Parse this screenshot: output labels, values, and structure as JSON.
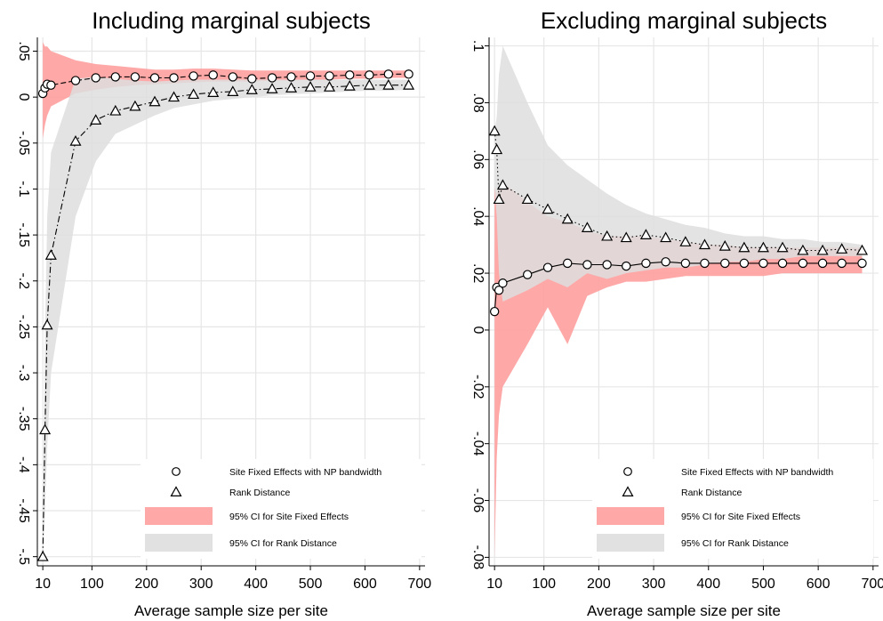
{
  "chart_data": [
    {
      "type": "line",
      "title": "Including marginal subjects",
      "xlabel": "Average sample size per site",
      "ylabel": "",
      "xlim": [
        0,
        710
      ],
      "ylim": [
        -0.51,
        0.065
      ],
      "xticks": [
        10,
        100,
        200,
        300,
        400,
        500,
        600,
        700
      ],
      "xtick_labels": [
        "10",
        "100",
        "200",
        "300",
        "400",
        "500",
        "600",
        "700"
      ],
      "yticks": [
        0.05,
        0,
        -0.05,
        -0.1,
        -0.15,
        -0.2,
        -0.25,
        -0.3,
        -0.35,
        -0.4,
        -0.45,
        -0.5
      ],
      "ytick_labels": [
        ".05",
        "0",
        "-.05",
        "-.1",
        "-.15",
        "-.2",
        "-.25",
        "-.3",
        "-.35",
        "-.4",
        "-.45",
        "-.5"
      ],
      "grid": true,
      "legend_position": "bottom-right",
      "legend": [
        "Site Fixed Effects with NP bandwidth",
        "Rank Distance",
        "95% CI for Site Fixed Effects",
        "95% CI for Rank Distance"
      ],
      "series": [
        {
          "marker": "circle",
          "line": "dash",
          "x": [
            10,
            14,
            18,
            25,
            70,
            107,
            143,
            179,
            215,
            250,
            286,
            322,
            358,
            393,
            430,
            465,
            500,
            535,
            572,
            608,
            643,
            680
          ],
          "y": [
            0.004,
            0.01,
            0.014,
            0.013,
            0.018,
            0.021,
            0.022,
            0.022,
            0.021,
            0.021,
            0.023,
            0.024,
            0.022,
            0.02,
            0.021,
            0.022,
            0.023,
            0.023,
            0.024,
            0.024,
            0.025,
            0.025
          ]
        },
        {
          "marker": "triangle",
          "line": "dashdot",
          "x": [
            10,
            14,
            18,
            25,
            70,
            107,
            143,
            179,
            215,
            250,
            286,
            322,
            358,
            393,
            430,
            465,
            500,
            535,
            572,
            608,
            643,
            680
          ],
          "y": [
            -0.5,
            -0.362,
            -0.248,
            -0.172,
            -0.048,
            -0.025,
            -0.015,
            -0.01,
            -0.005,
            0.0,
            0.003,
            0.005,
            0.006,
            0.008,
            0.009,
            0.01,
            0.011,
            0.011,
            0.012,
            0.013,
            0.013,
            0.013
          ]
        }
      ],
      "bands": [
        {
          "color": "#ff9e9e",
          "x": [
            10,
            14,
            18,
            25,
            70,
            107,
            143,
            179,
            215,
            250,
            286,
            322,
            358,
            393,
            430,
            465,
            500,
            535,
            572,
            608,
            643,
            680
          ],
          "lower": [
            -0.045,
            -0.03,
            -0.02,
            -0.01,
            0.004,
            0.008,
            0.011,
            0.013,
            0.014,
            0.015,
            0.016,
            0.017,
            0.017,
            0.017,
            0.018,
            0.018,
            0.019,
            0.019,
            0.02,
            0.02,
            0.021,
            0.021
          ],
          "upper": [
            0.06,
            0.055,
            0.055,
            0.05,
            0.04,
            0.036,
            0.034,
            0.032,
            0.03,
            0.03,
            0.031,
            0.031,
            0.03,
            0.029,
            0.029,
            0.029,
            0.029,
            0.029,
            0.029,
            0.029,
            0.029,
            0.029
          ]
        },
        {
          "color": "#dedede",
          "x": [
            10,
            14,
            18,
            25,
            70,
            107,
            143,
            179,
            215,
            250,
            286,
            322,
            358,
            393,
            430,
            465,
            500,
            535,
            572,
            608,
            643,
            680
          ],
          "lower": [
            -0.5,
            -0.45,
            -0.38,
            -0.3,
            -0.13,
            -0.07,
            -0.04,
            -0.03,
            -0.02,
            -0.012,
            -0.008,
            -0.004,
            -0.002,
            0.0,
            0.002,
            0.003,
            0.004,
            0.005,
            0.006,
            0.007,
            0.007,
            0.008
          ],
          "upper": [
            -0.5,
            -0.26,
            -0.13,
            -0.06,
            0.02,
            0.022,
            0.02,
            0.018,
            0.017,
            0.018,
            0.019,
            0.019,
            0.019,
            0.019,
            0.019,
            0.019,
            0.019,
            0.019,
            0.019,
            0.019,
            0.019,
            0.019
          ]
        }
      ]
    },
    {
      "type": "line",
      "title": "Excluding marginal subjects",
      "xlabel": "Average sample size per site",
      "ylabel": "",
      "xlim": [
        0,
        710
      ],
      "ylim": [
        -0.083,
        0.103
      ],
      "xticks": [
        10,
        100,
        200,
        300,
        400,
        500,
        600,
        700
      ],
      "xtick_labels": [
        "10",
        "100",
        "200",
        "300",
        "400",
        "500",
        "600",
        "700"
      ],
      "yticks": [
        0.1,
        0.08,
        0.06,
        0.04,
        0.02,
        0,
        -0.02,
        -0.04,
        -0.06,
        -0.08
      ],
      "ytick_labels": [
        ".1",
        ".08",
        ".06",
        ".04",
        ".02",
        "0",
        "-.02",
        "-.04",
        "-.06",
        "-.08"
      ],
      "grid": true,
      "legend_position": "bottom-right",
      "legend": [
        "Site Fixed Effects with NP bandwidth",
        "Rank Distance",
        "95% CI for Site Fixed Effects",
        "95% CI for Rank Distance"
      ],
      "series": [
        {
          "marker": "circle",
          "line": "solid",
          "x": [
            10,
            14,
            18,
            25,
            70,
            107,
            143,
            179,
            215,
            250,
            286,
            322,
            358,
            393,
            430,
            465,
            500,
            535,
            572,
            608,
            643,
            680
          ],
          "y": [
            0.0065,
            0.015,
            0.014,
            0.0165,
            0.0195,
            0.022,
            0.0235,
            0.023,
            0.023,
            0.0225,
            0.0235,
            0.024,
            0.0235,
            0.0235,
            0.0235,
            0.0235,
            0.0235,
            0.0235,
            0.0235,
            0.0235,
            0.0235,
            0.0235
          ]
        },
        {
          "marker": "triangle",
          "line": "dot",
          "x": [
            10,
            14,
            18,
            25,
            70,
            107,
            143,
            179,
            215,
            250,
            286,
            322,
            358,
            393,
            430,
            465,
            500,
            535,
            572,
            608,
            643,
            680
          ],
          "y": [
            0.07,
            0.0635,
            0.046,
            0.051,
            0.046,
            0.0425,
            0.039,
            0.036,
            0.033,
            0.0325,
            0.0335,
            0.0325,
            0.031,
            0.03,
            0.0295,
            0.029,
            0.029,
            0.029,
            0.028,
            0.028,
            0.0285,
            0.028
          ]
        }
      ],
      "bands": [
        {
          "color": "#ff9e9e",
          "x": [
            10,
            14,
            18,
            25,
            70,
            107,
            143,
            179,
            215,
            250,
            286,
            322,
            358,
            393,
            430,
            465,
            500,
            535,
            572,
            608,
            643,
            680
          ],
          "lower": [
            -0.08,
            -0.045,
            -0.03,
            -0.02,
            -0.005,
            0.008,
            -0.005,
            0.012,
            0.015,
            0.017,
            0.017,
            0.018,
            0.019,
            0.019,
            0.019,
            0.019,
            0.019,
            0.02,
            0.02,
            0.02,
            0.02,
            0.02
          ],
          "upper": [
            0.05,
            0.048,
            0.05,
            0.052,
            0.045,
            0.04,
            0.038,
            0.035,
            0.033,
            0.033,
            0.033,
            0.032,
            0.031,
            0.03,
            0.03,
            0.029,
            0.029,
            0.029,
            0.029,
            0.029,
            0.029,
            0.029
          ]
        },
        {
          "color": "#dedede",
          "x": [
            10,
            14,
            18,
            25,
            70,
            107,
            143,
            179,
            215,
            250,
            286,
            322,
            358,
            393,
            430,
            465,
            500,
            535,
            572,
            608,
            643,
            680
          ],
          "lower": [
            0.05,
            0.04,
            0.02,
            0.01,
            0.014,
            0.018,
            0.015,
            0.02,
            0.018,
            0.02,
            0.021,
            0.022,
            0.022,
            0.023,
            0.024,
            0.024,
            0.025,
            0.025,
            0.026,
            0.026,
            0.026,
            0.026
          ],
          "upper": [
            0.07,
            0.075,
            0.09,
            0.1,
            0.08,
            0.065,
            0.058,
            0.053,
            0.048,
            0.044,
            0.041,
            0.039,
            0.037,
            0.036,
            0.034,
            0.033,
            0.033,
            0.032,
            0.032,
            0.031,
            0.031,
            0.03
          ]
        }
      ]
    }
  ]
}
